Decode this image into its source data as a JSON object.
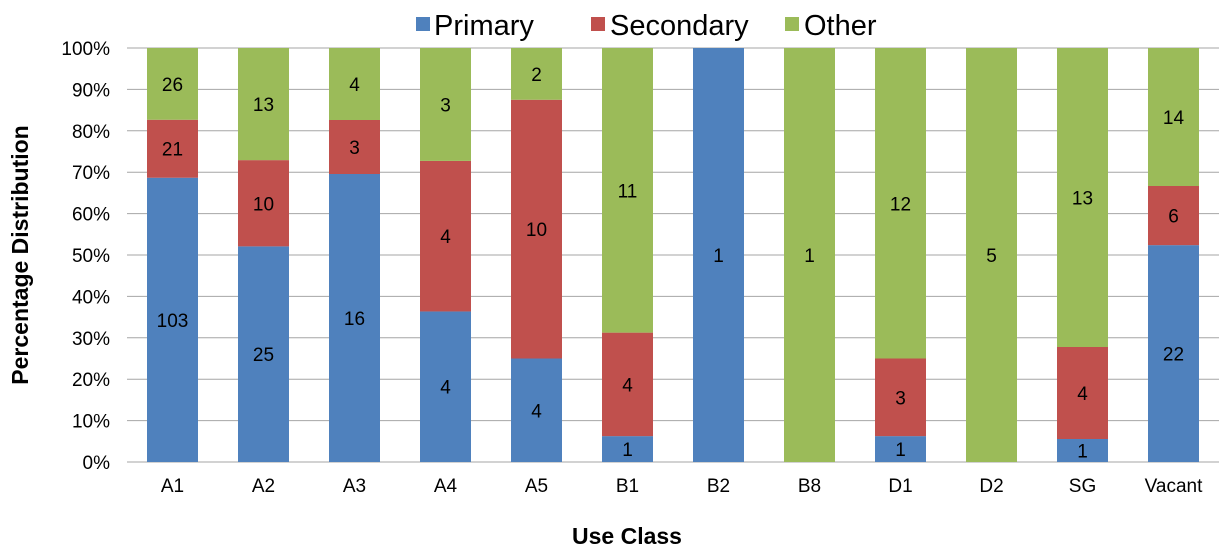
{
  "chart_data": {
    "type": "bar",
    "stacked": "percent",
    "xlabel": "Use Class",
    "ylabel": "Percentage Distribution",
    "ylim": [
      0,
      100
    ],
    "yticks": [
      "0%",
      "10%",
      "20%",
      "30%",
      "40%",
      "50%",
      "60%",
      "70%",
      "80%",
      "90%",
      "100%"
    ],
    "legend_position": "top",
    "grid": true,
    "categories": [
      "A1",
      "A2",
      "A3",
      "A4",
      "A5",
      "B1",
      "B2",
      "B8",
      "D1",
      "D2",
      "SG",
      "Vacant"
    ],
    "series": [
      {
        "name": "Primary",
        "color": "#4f81bd",
        "values": [
          103,
          25,
          16,
          4,
          4,
          1,
          1,
          0,
          1,
          0,
          1,
          22
        ]
      },
      {
        "name": "Secondary",
        "color": "#c0504d",
        "values": [
          21,
          10,
          3,
          4,
          10,
          4,
          0,
          0,
          3,
          0,
          4,
          6
        ]
      },
      {
        "name": "Other",
        "color": "#9bbb59",
        "values": [
          26,
          13,
          4,
          3,
          2,
          11,
          0,
          1,
          12,
          5,
          13,
          14
        ]
      }
    ]
  }
}
